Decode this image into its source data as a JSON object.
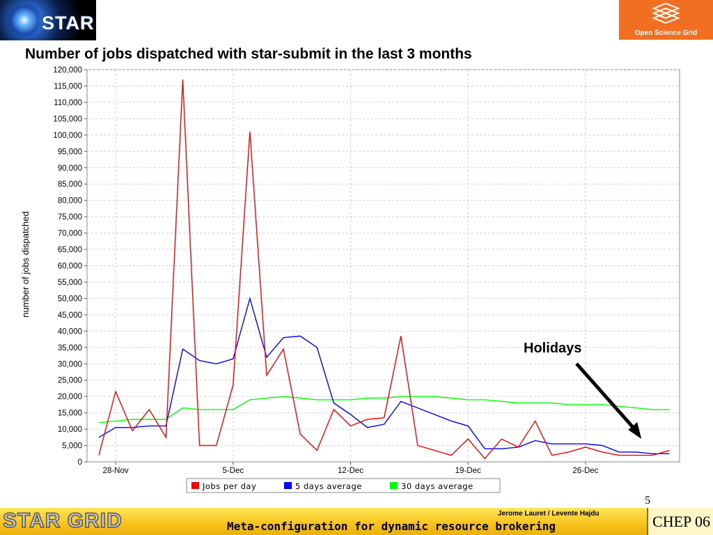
{
  "logos": {
    "left_text": "STAR",
    "right_text": "Open Science Grid"
  },
  "chart_data": {
    "type": "line",
    "title": "Number of jobs dispatched with star-submit in the last 3 months",
    "ylabel": "number of jobs dispatched",
    "xlabel": "",
    "ylim": [
      0,
      120000
    ],
    "yticks": [
      0,
      5000,
      10000,
      15000,
      20000,
      25000,
      30000,
      35000,
      40000,
      45000,
      50000,
      55000,
      60000,
      65000,
      70000,
      75000,
      80000,
      85000,
      90000,
      95000,
      100000,
      105000,
      110000,
      115000,
      120000
    ],
    "ytick_labels": [
      "0",
      "5,000",
      "10,000",
      "15,000",
      "20,000",
      "25,000",
      "30,000",
      "35,000",
      "40,000",
      "45,000",
      "50,000",
      "55,000",
      "60,000",
      "65,000",
      "70,000",
      "75,000",
      "80,000",
      "85,000",
      "90,000",
      "95,000",
      "100,000",
      "105,000",
      "110,000",
      "115,000",
      "120,000"
    ],
    "x": [
      "27-Nov",
      "28-Nov",
      "29-Nov",
      "30-Nov",
      "1-Dec",
      "2-Dec",
      "3-Dec",
      "4-Dec",
      "5-Dec",
      "6-Dec",
      "7-Dec",
      "8-Dec",
      "9-Dec",
      "10-Dec",
      "11-Dec",
      "12-Dec",
      "13-Dec",
      "14-Dec",
      "15-Dec",
      "16-Dec",
      "17-Dec",
      "18-Dec",
      "19-Dec",
      "20-Dec",
      "21-Dec",
      "22-Dec",
      "23-Dec",
      "24-Dec",
      "25-Dec",
      "26-Dec",
      "27-Dec",
      "28-Dec",
      "29-Dec",
      "30-Dec",
      "31-Dec"
    ],
    "xticks": [
      {
        "label": "28-Nov",
        "at": "28-Nov"
      },
      {
        "label": "5-Dec",
        "at": "5-Dec"
      },
      {
        "label": "12-Dec",
        "at": "12-Dec"
      },
      {
        "label": "19-Dec",
        "at": "19-Dec"
      },
      {
        "label": "26-Dec",
        "at": "26-Dec"
      }
    ],
    "x_axis_end": "31-Dec",
    "x_axis_start": "27-Nov",
    "series": [
      {
        "name": "Jobs per day",
        "color": "#ff0000",
        "values": [
          2000,
          21500,
          9500,
          16000,
          7500,
          117000,
          5000,
          5000,
          23500,
          101000,
          26500,
          34500,
          8500,
          3500,
          16000,
          11000,
          13000,
          13500,
          38500,
          5000,
          3500,
          2000,
          7000,
          1000,
          7000,
          4500,
          12500,
          2000,
          3000,
          4500,
          3000,
          2000,
          2000,
          2000,
          3500
        ]
      },
      {
        "name": "5 days average",
        "color": "#0000ff",
        "values": [
          7500,
          10500,
          10500,
          11000,
          11000,
          34500,
          31000,
          30000,
          31500,
          50000,
          32000,
          38000,
          38500,
          35000,
          18000,
          14500,
          10500,
          11500,
          18500,
          16500,
          14500,
          12500,
          11000,
          4000,
          4000,
          4500,
          6500,
          5500,
          5500,
          5500,
          5000,
          3000,
          3000,
          2500,
          2500
        ]
      },
      {
        "name": "30 days average",
        "color": "#00ff00",
        "values": [
          12000,
          12500,
          13000,
          13000,
          13000,
          16500,
          16000,
          16000,
          16000,
          19000,
          19500,
          20000,
          19500,
          19000,
          19000,
          19000,
          19500,
          19500,
          20000,
          20000,
          20000,
          19500,
          19000,
          19000,
          18500,
          18000,
          18000,
          18000,
          17500,
          17500,
          17500,
          17000,
          16500,
          16000,
          16000
        ]
      }
    ],
    "legend": [
      "Jobs per day",
      "5 days average",
      "30 days average"
    ],
    "legend_position": "bottom-center",
    "grid": true,
    "annotations": [
      {
        "text": "Holidays",
        "target": "29-Dec"
      }
    ]
  },
  "slide_number": "5",
  "footer": {
    "brand": "STAR GRID",
    "authors": "Jerome Lauret  /  Levente Hajdu",
    "subtitle": "Meta-configuration for dynamic resource brokering",
    "event": "CHEP 06"
  }
}
